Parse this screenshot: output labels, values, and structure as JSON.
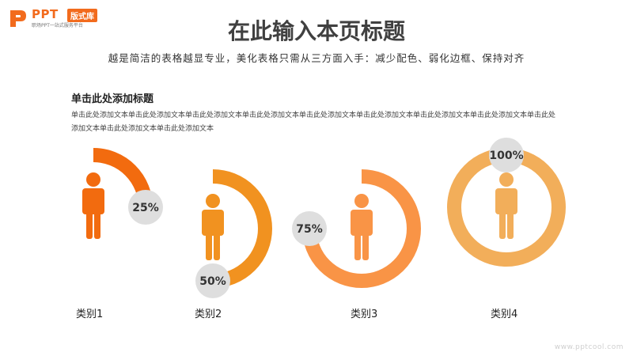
{
  "logo": {
    "text": "PPT",
    "badge": "版式库",
    "tagline": "职场PPT一站式服务平台"
  },
  "title": "在此输入本页标题",
  "subtitle": "越是简洁的表格越显专业，美化表格只需从三方面入手：减少配色、弱化边框、保持对齐",
  "section": {
    "heading": "单击此处添加标题",
    "body": "单击此处添加文本单击此处添加文本单击此处添加文本单击此处添加文本单击此处添加文本单击此处添加文本单击此处添加文本单击此处添加文本单击此处添加文本单击此处添加文本单击此处添加文本"
  },
  "chart_data": {
    "type": "donut",
    "categories": [
      "类别1",
      "类别2",
      "类别3",
      "类别4"
    ],
    "values": [
      25,
      50,
      75,
      100
    ],
    "labels": [
      "25%",
      "50%",
      "75%",
      "100%"
    ],
    "colors": [
      "#f26b0f",
      "#f19220",
      "#f99446",
      "#f2ae5a"
    ],
    "label_bubble_color": "#dedede",
    "person_icon": "person-icon"
  },
  "watermark": "www.pptcool.com"
}
